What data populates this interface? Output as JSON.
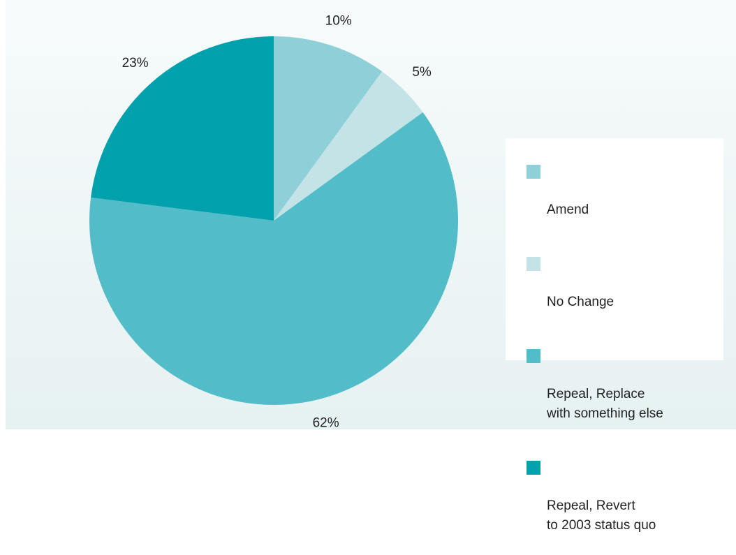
{
  "chart_data": {
    "type": "pie",
    "title": "",
    "slices": [
      {
        "label": "Amend",
        "value": 10,
        "display": "10%",
        "color": "#8fcfd8"
      },
      {
        "label": "No Change",
        "value": 5,
        "display": "5%",
        "color": "#c4e3e6"
      },
      {
        "label": "Repeal, Replace\nwith something else",
        "value": 62,
        "display": "62%",
        "color": "#52bcc8"
      },
      {
        "label": "Repeal, Revert\nto 2003 status quo",
        "value": 23,
        "display": "23%",
        "color": "#00a0ac"
      }
    ],
    "start_angle_deg": 0,
    "direction": "clockwise",
    "legend_position": "right"
  },
  "colors": {
    "background_top": "#f7fbfb",
    "background_bottom": "#e6f1f2",
    "legend_background": "#ffffff",
    "text": "#222222"
  }
}
